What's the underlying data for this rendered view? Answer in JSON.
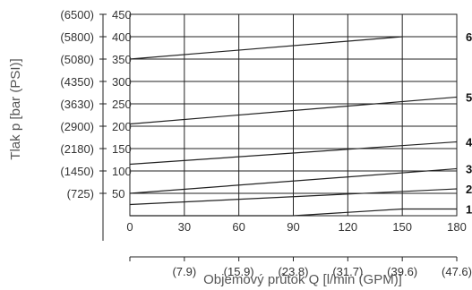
{
  "chart_data": {
    "type": "line",
    "xlabel": "Objemový průtok Q [l/min (GPM)]",
    "ylabel": "Tlak p [bar (PSI)]",
    "xlim": [
      0,
      180
    ],
    "ylim": [
      0,
      450
    ],
    "x_ticks": [
      0,
      30,
      60,
      90,
      120,
      150,
      180
    ],
    "x_secondary_ticks": [
      {
        "x": 30,
        "label": "(7.9)"
      },
      {
        "x": 60,
        "label": "(15.9)"
      },
      {
        "x": 90,
        "label": "(23.8)"
      },
      {
        "x": 120,
        "label": "(31.7)"
      },
      {
        "x": 150,
        "label": "(39.6)"
      },
      {
        "x": 180,
        "label": "(47.6)"
      }
    ],
    "y_ticks": [
      50,
      100,
      150,
      200,
      250,
      300,
      350,
      400,
      450
    ],
    "y_secondary_ticks": [
      {
        "y": 50,
        "label": "(725)"
      },
      {
        "y": 100,
        "label": "(1450)"
      },
      {
        "y": 150,
        "label": "(2180)"
      },
      {
        "y": 200,
        "label": "(2900)"
      },
      {
        "y": 250,
        "label": "(3630)"
      },
      {
        "y": 300,
        "label": "(4350)"
      },
      {
        "y": 350,
        "label": "(5080)"
      },
      {
        "y": 400,
        "label": "(5800)"
      },
      {
        "y": 450,
        "label": "(6500)"
      }
    ],
    "grid": true,
    "series": [
      {
        "name": "1",
        "x": [
          0,
          90,
          150,
          180
        ],
        "y": [
          0,
          0,
          15,
          15
        ]
      },
      {
        "name": "2",
        "x": [
          0,
          180
        ],
        "y": [
          25,
          60
        ]
      },
      {
        "name": "3",
        "x": [
          0,
          180
        ],
        "y": [
          50,
          105
        ]
      },
      {
        "name": "4",
        "x": [
          0,
          180
        ],
        "y": [
          115,
          165
        ]
      },
      {
        "name": "5",
        "x": [
          0,
          180
        ],
        "y": [
          205,
          265
        ]
      },
      {
        "name": "6",
        "x": [
          0,
          150
        ],
        "y": [
          350,
          400
        ]
      }
    ]
  }
}
